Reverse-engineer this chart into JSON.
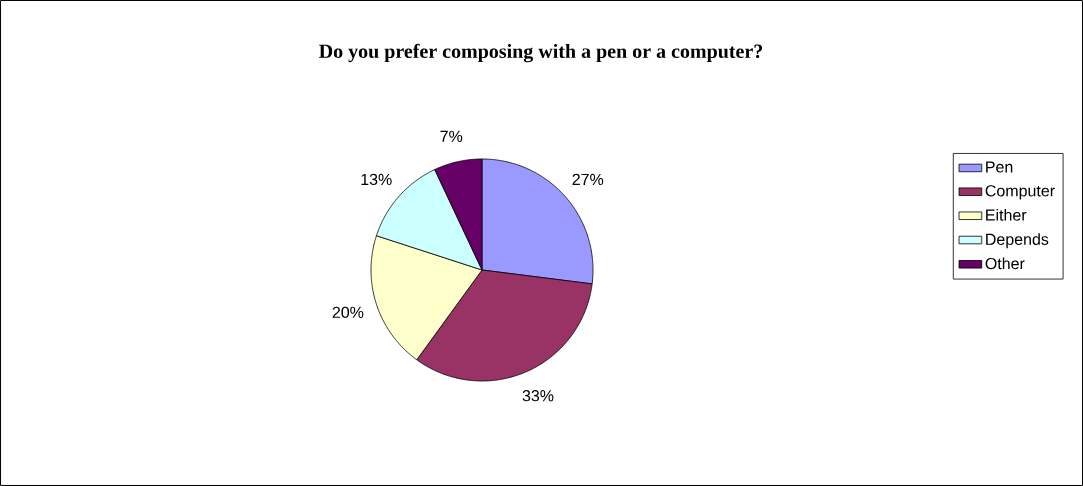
{
  "chart_data": {
    "type": "pie",
    "title": "Do you prefer composing with a pen or a computer?",
    "categories": [
      "Pen",
      "Computer",
      "Either",
      "Depends",
      "Other"
    ],
    "values": [
      27,
      33,
      20,
      13,
      7
    ],
    "value_labels": [
      "27%",
      "33%",
      "20%",
      "13%",
      "7%"
    ],
    "colors": [
      "#9999ff",
      "#993366",
      "#ffffcc",
      "#ccffff",
      "#660066"
    ],
    "legend": "right"
  }
}
